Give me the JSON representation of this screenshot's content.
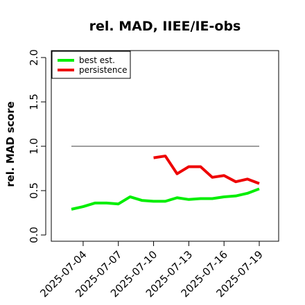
{
  "chart_data": {
    "type": "line",
    "title": "rel. MAD, IIEE/IE-obs",
    "ylabel": "rel. MAD score",
    "xlabel": "",
    "ylim": [
      0.0,
      2.05
    ],
    "yticks": [
      "0.0",
      "0.5",
      "1.0",
      "1.5",
      "2.0"
    ],
    "ytick_values": [
      0.0,
      0.5,
      1.0,
      1.5,
      2.0
    ],
    "x": [
      "2025-07-03",
      "2025-07-04",
      "2025-07-05",
      "2025-07-06",
      "2025-07-07",
      "2025-07-08",
      "2025-07-09",
      "2025-07-10",
      "2025-07-11",
      "2025-07-12",
      "2025-07-13",
      "2025-07-14",
      "2025-07-15",
      "2025-07-16",
      "2025-07-17",
      "2025-07-18",
      "2025-07-19"
    ],
    "xticks": [
      "2025-07-04",
      "2025-07-07",
      "2025-07-10",
      "2025-07-13",
      "2025-07-16",
      "2025-07-19"
    ],
    "legend_position": "top-left",
    "reference_line": {
      "value": 1.0,
      "color": "#7f7f7f"
    },
    "series": [
      {
        "name": "best est.",
        "color": "#00ee00",
        "values": [
          0.29,
          0.32,
          0.36,
          0.36,
          0.35,
          0.43,
          0.39,
          0.38,
          0.38,
          0.42,
          0.4,
          0.41,
          0.41,
          0.43,
          0.44,
          0.47,
          0.52
        ]
      },
      {
        "name": "persistence",
        "color": "#ee0000",
        "values": [
          null,
          null,
          null,
          null,
          null,
          null,
          null,
          0.87,
          0.89,
          0.69,
          0.77,
          0.77,
          0.65,
          0.67,
          0.6,
          0.63,
          0.58
        ]
      }
    ]
  }
}
